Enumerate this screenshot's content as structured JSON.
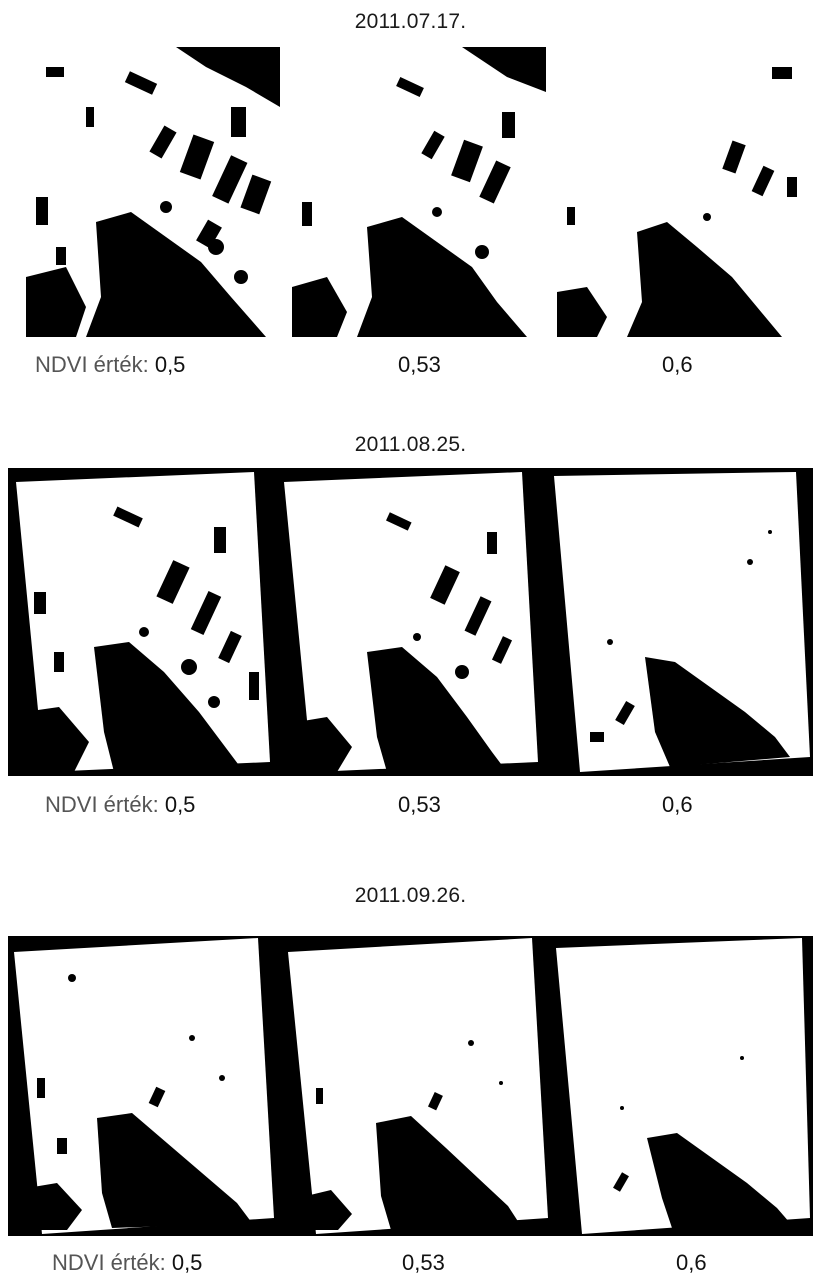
{
  "groups": [
    {
      "date": "2011.07.17.",
      "panels": [
        {
          "threshold_label": "0,5",
          "ndvi": 0.5
        },
        {
          "threshold_label": "0,53",
          "ndvi": 0.53
        },
        {
          "threshold_label": "0,6",
          "ndvi": 0.6
        }
      ]
    },
    {
      "date": "2011.08.25.",
      "panels": [
        {
          "threshold_label": "0,5",
          "ndvi": 0.5
        },
        {
          "threshold_label": "0,53",
          "ndvi": 0.53
        },
        {
          "threshold_label": "0,6",
          "ndvi": 0.6
        }
      ]
    },
    {
      "date": "2011.09.26.",
      "panels": [
        {
          "threshold_label": "0,5",
          "ndvi": 0.5
        },
        {
          "threshold_label": "0,53",
          "ndvi": 0.53
        },
        {
          "threshold_label": "0,6",
          "ndvi": 0.6
        }
      ]
    }
  ],
  "label_prefix": "NDVI érték:"
}
